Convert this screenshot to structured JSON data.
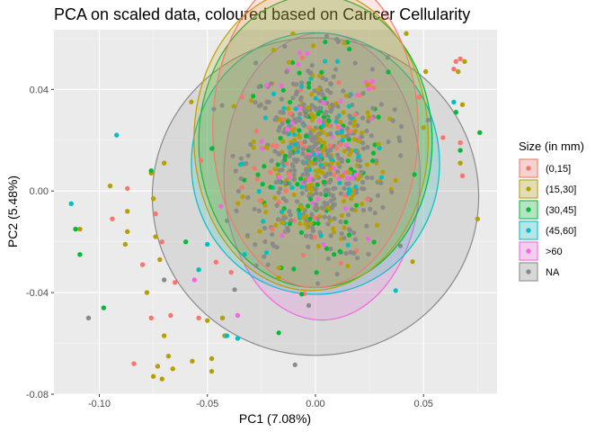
{
  "chart_data": {
    "type": "scatter",
    "title": "PCA on scaled data, coloured based on Cancer Cellularity",
    "xlabel": "PC1 (7.08%)",
    "ylabel": "PC2 (5.48%)",
    "xlim": [
      -0.121,
      0.084
    ],
    "ylim": [
      -0.08,
      0.0635
    ],
    "x_ticks": [
      {
        "value": -0.1,
        "label": "-0.10"
      },
      {
        "value": -0.05,
        "label": "-0.05"
      },
      {
        "value": 0.0,
        "label": "0.00"
      },
      {
        "value": 0.05,
        "label": "0.05"
      }
    ],
    "y_ticks": [
      {
        "value": -0.08,
        "label": "-0.08"
      },
      {
        "value": -0.04,
        "label": "-0.04"
      },
      {
        "value": 0.0,
        "label": "0.00"
      },
      {
        "value": 0.04,
        "label": "0.04"
      }
    ],
    "grid": true,
    "legend": {
      "title": "Size (in mm)",
      "placement": "right"
    },
    "series": [
      {
        "name": "(0,15]",
        "color": "#F8766D",
        "ellipse": {
          "cx": 0.0,
          "cy": 0.0245,
          "rx": 0.0475,
          "ry": 0.0625
        },
        "points": [
          [
            -0.087,
            0.001
          ],
          [
            -0.094,
            -0.011
          ],
          [
            -0.074,
            -0.009
          ],
          [
            -0.071,
            -0.02
          ],
          [
            -0.08,
            -0.029
          ],
          [
            -0.076,
            -0.05
          ],
          [
            -0.067,
            -0.049
          ],
          [
            -0.084,
            -0.068
          ],
          [
            -0.065,
            -0.036
          ],
          [
            -0.054,
            -0.05
          ],
          [
            0.065,
            0.051
          ],
          [
            0.067,
            0.052
          ],
          [
            0.064,
            0.048
          ],
          [
            0.059,
            0.021
          ],
          [
            0.067,
            0.019
          ],
          [
            0.048,
            0.037
          ],
          [
            0.068,
            0.006
          ],
          [
            -0.053,
            0.012
          ],
          [
            -0.046,
            -0.028
          ],
          [
            -0.039,
            -0.032
          ]
        ],
        "cloud_count": 60
      },
      {
        "name": "(15,30]",
        "color": "#B79F00",
        "ellipse": {
          "cx": -0.002,
          "cy": 0.0203,
          "rx": 0.0542,
          "ry": 0.0595
        },
        "points": [
          [
            0.042,
            0.062
          ],
          [
            0.069,
            0.051
          ],
          [
            0.066,
            0.047
          ],
          [
            0.068,
            0.034
          ],
          [
            0.05,
            0.025
          ],
          [
            0.067,
            0.011
          ],
          [
            0.075,
            -0.011
          ],
          [
            -0.109,
            -0.015
          ],
          [
            -0.095,
            0.002
          ],
          [
            -0.087,
            -0.008
          ],
          [
            -0.088,
            -0.021
          ],
          [
            -0.087,
            -0.016
          ],
          [
            -0.076,
            0.007
          ],
          [
            -0.075,
            -0.003
          ],
          [
            -0.074,
            -0.018
          ],
          [
            -0.072,
            -0.027
          ],
          [
            -0.078,
            -0.04
          ],
          [
            -0.07,
            -0.057
          ],
          [
            -0.068,
            -0.065
          ],
          [
            -0.073,
            -0.069
          ],
          [
            -0.075,
            -0.073
          ],
          [
            -0.071,
            -0.074
          ],
          [
            -0.066,
            -0.07
          ],
          [
            -0.057,
            -0.067
          ],
          [
            -0.048,
            -0.071
          ],
          [
            -0.048,
            -0.066
          ],
          [
            -0.042,
            -0.057
          ],
          [
            -0.05,
            -0.051
          ],
          [
            -0.07,
            0.011
          ],
          [
            0.051,
            0.047
          ],
          [
            -0.043,
            -0.05
          ]
        ],
        "cloud_count": 160
      },
      {
        "name": "(30,45]",
        "color": "#00BA38",
        "ellipse": {
          "cx": 0.0,
          "cy": 0.0195,
          "rx": 0.054,
          "ry": 0.0575
        },
        "points": [
          [
            -0.111,
            -0.015
          ],
          [
            -0.109,
            -0.025
          ],
          [
            -0.098,
            -0.046
          ],
          [
            -0.076,
            0.008
          ],
          [
            0.076,
            0.023
          ],
          [
            0.067,
            0.016
          ],
          [
            0.065,
            0.031
          ],
          [
            -0.06,
            -0.02
          ]
        ],
        "cloud_count": 90
      },
      {
        "name": "(45,60]",
        "color": "#00BFC4",
        "ellipse": {
          "cx": 0.0,
          "cy": 0.0108,
          "rx": 0.0574,
          "ry": 0.0515
        },
        "points": [
          [
            -0.092,
            0.022
          ],
          [
            -0.113,
            -0.005
          ],
          [
            0.064,
            0.035
          ],
          [
            -0.054,
            -0.031
          ],
          [
            -0.041,
            -0.057
          ],
          [
            -0.036,
            -0.058
          ],
          [
            -0.05,
            -0.021
          ]
        ],
        "cloud_count": 70
      },
      {
        "name": ">60",
        "color": "#F564E3",
        "ellipse": {
          "cx": 0.003,
          "cy": 0.0057,
          "rx": 0.0454,
          "ry": 0.0565
        },
        "points": [
          [
            -0.056,
            -0.035
          ],
          [
            -0.036,
            -0.049
          ]
        ],
        "cloud_count": 50
      },
      {
        "name": "NA",
        "color": "#8A8A8A",
        "ellipse": {
          "cx": 0.0,
          "cy": -0.0022,
          "rx": 0.0755,
          "ry": 0.0625
        },
        "points": [
          [
            -0.105,
            -0.05
          ],
          [
            -0.07,
            -0.035
          ]
        ],
        "cloud_count": 380
      }
    ]
  }
}
